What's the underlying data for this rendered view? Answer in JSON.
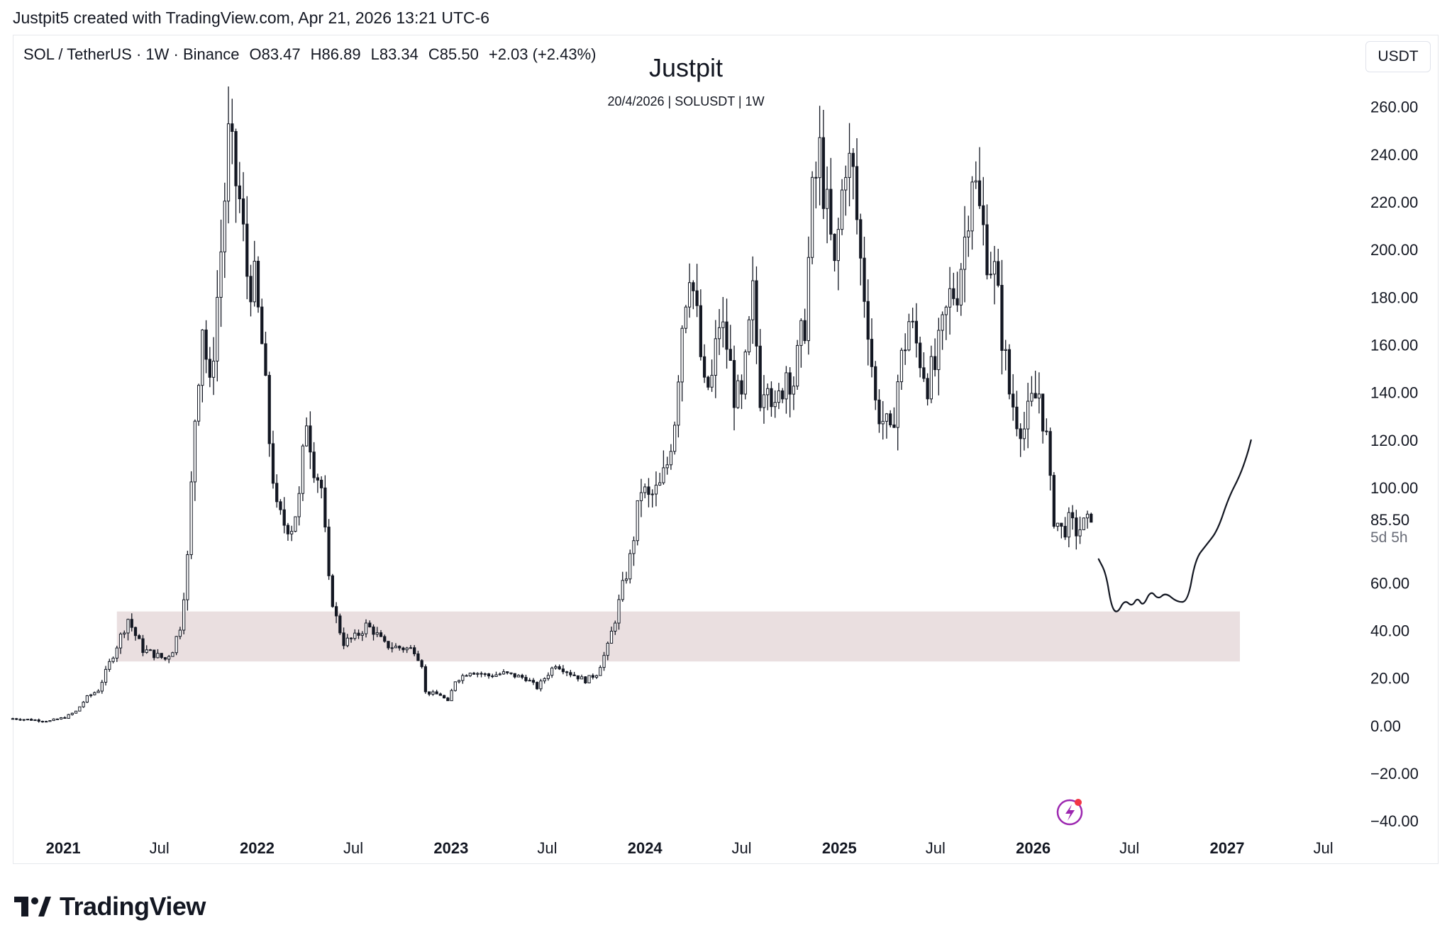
{
  "header": {
    "credit": "Justpit5 created with TradingView.com, Apr 21, 2026 13:21 UTC-6"
  },
  "legend": {
    "symbol": "SOL / TetherUS · 1W · Binance",
    "open": "O83.47",
    "high": "H86.89",
    "low": "L83.34",
    "close": "C85.50",
    "change": "+2.03 (+2.43%)"
  },
  "author": "Justpit",
  "subtitle": "20/4/2026 | SOLUSDT | 1W",
  "currency_button": "USDT",
  "footer": {
    "brand": "TradingView"
  },
  "colors": {
    "candles": "#131722",
    "zone_fill": "#eadfe0",
    "accent": "#9c27b0",
    "alert_dot": "#f23645"
  },
  "chart_data": {
    "type": "candlestick",
    "title": "Justpit",
    "subtitle": "20/4/2026 | SOLUSDT | 1W",
    "symbol": "SOL / TetherUS",
    "interval": "1W",
    "exchange": "Binance",
    "last_price": "85.50",
    "countdown": "5d 5h",
    "ylim": [
      -45,
      290
    ],
    "y_ticks": [
      260,
      240,
      220,
      200,
      180,
      160,
      140,
      120,
      100,
      60,
      40,
      20,
      0,
      -20,
      -40
    ],
    "y_tick_labels": [
      "260.00",
      "240.00",
      "220.00",
      "200.00",
      "180.00",
      "160.00",
      "140.00",
      "120.00",
      "100.00",
      "60.00",
      "40.00",
      "20.00",
      "0.00",
      "−20.00",
      "−40.00"
    ],
    "x_range": [
      "2020-09-28",
      "2027-09-01"
    ],
    "x_ticks": [
      {
        "date": "2021-01-01",
        "label": "2021",
        "bold": true
      },
      {
        "date": "2021-07-01",
        "label": "Jul",
        "bold": false
      },
      {
        "date": "2022-01-01",
        "label": "2022",
        "bold": true
      },
      {
        "date": "2022-07-01",
        "label": "Jul",
        "bold": false
      },
      {
        "date": "2023-01-01",
        "label": "2023",
        "bold": true
      },
      {
        "date": "2023-07-01",
        "label": "Jul",
        "bold": false
      },
      {
        "date": "2024-01-01",
        "label": "2024",
        "bold": true
      },
      {
        "date": "2024-07-01",
        "label": "Jul",
        "bold": false
      },
      {
        "date": "2025-01-01",
        "label": "2025",
        "bold": true
      },
      {
        "date": "2025-07-01",
        "label": "Jul",
        "bold": false
      },
      {
        "date": "2026-01-01",
        "label": "2026",
        "bold": true
      },
      {
        "date": "2026-07-01",
        "label": "Jul",
        "bold": false
      },
      {
        "date": "2027-01-01",
        "label": "2027",
        "bold": true
      },
      {
        "date": "2027-07-01",
        "label": "Jul",
        "bold": false
      }
    ],
    "price_path": [
      [
        "2020-09-28",
        3.0
      ],
      [
        "2020-12-07",
        2.0
      ],
      [
        "2021-01-04",
        3.5
      ],
      [
        "2021-01-25",
        6
      ],
      [
        "2021-02-15",
        12
      ],
      [
        "2021-03-08",
        15
      ],
      [
        "2021-04-05",
        30
      ],
      [
        "2021-05-03",
        45
      ],
      [
        "2021-05-17",
        38
      ],
      [
        "2021-05-31",
        32
      ],
      [
        "2021-06-21",
        30
      ],
      [
        "2021-07-12",
        28
      ],
      [
        "2021-07-26",
        32
      ],
      [
        "2021-08-09",
        42
      ],
      [
        "2021-08-23",
        70
      ],
      [
        "2021-09-06",
        130
      ],
      [
        "2021-09-20",
        170
      ],
      [
        "2021-10-04",
        140
      ],
      [
        "2021-10-25",
        200
      ],
      [
        "2021-11-08",
        245
      ],
      [
        "2021-11-29",
        220
      ],
      [
        "2021-12-13",
        190
      ],
      [
        "2021-12-27",
        185
      ],
      [
        "2022-01-10",
        160
      ],
      [
        "2022-01-24",
        120
      ],
      [
        "2022-02-07",
        90
      ],
      [
        "2022-02-21",
        85
      ],
      [
        "2022-03-07",
        84
      ],
      [
        "2022-03-21",
        95
      ],
      [
        "2022-04-04",
        130
      ],
      [
        "2022-04-18",
        110
      ],
      [
        "2022-05-02",
        100
      ],
      [
        "2022-05-16",
        60
      ],
      [
        "2022-05-30",
        45
      ],
      [
        "2022-06-13",
        35
      ],
      [
        "2022-07-04",
        37
      ],
      [
        "2022-07-25",
        42
      ],
      [
        "2022-08-08",
        40
      ],
      [
        "2022-08-29",
        34
      ],
      [
        "2022-09-19",
        33
      ],
      [
        "2022-10-24",
        32
      ],
      [
        "2022-11-07",
        26
      ],
      [
        "2022-11-14",
        14
      ],
      [
        "2022-12-12",
        13
      ],
      [
        "2022-12-26",
        10
      ],
      [
        "2023-01-09",
        19
      ],
      [
        "2023-02-06",
        23
      ],
      [
        "2023-03-13",
        21
      ],
      [
        "2023-04-10",
        22
      ],
      [
        "2023-05-22",
        20
      ],
      [
        "2023-06-12",
        16
      ],
      [
        "2023-07-17",
        26
      ],
      [
        "2023-08-14",
        22
      ],
      [
        "2023-09-11",
        19
      ],
      [
        "2023-10-02",
        22
      ],
      [
        "2023-10-23",
        33
      ],
      [
        "2023-11-06",
        45
      ],
      [
        "2023-11-20",
        58
      ],
      [
        "2023-12-04",
        70
      ],
      [
        "2023-12-25",
        100
      ],
      [
        "2024-01-08",
        95
      ],
      [
        "2024-01-29",
        100
      ],
      [
        "2024-02-12",
        110
      ],
      [
        "2024-02-26",
        130
      ],
      [
        "2024-03-11",
        170
      ],
      [
        "2024-03-25",
        195
      ],
      [
        "2024-04-08",
        170
      ],
      [
        "2024-04-22",
        140
      ],
      [
        "2024-05-06",
        145
      ],
      [
        "2024-05-20",
        170
      ],
      [
        "2024-06-03",
        160
      ],
      [
        "2024-06-17",
        140
      ],
      [
        "2024-07-01",
        135
      ],
      [
        "2024-07-22",
        180
      ],
      [
        "2024-08-05",
        140
      ],
      [
        "2024-08-19",
        150
      ],
      [
        "2024-09-02",
        130
      ],
      [
        "2024-09-23",
        150
      ],
      [
        "2024-10-07",
        145
      ],
      [
        "2024-10-28",
        170
      ],
      [
        "2024-11-11",
        220
      ],
      [
        "2024-11-25",
        240
      ],
      [
        "2024-12-09",
        215
      ],
      [
        "2024-12-23",
        190
      ],
      [
        "2025-01-13",
        240
      ],
      [
        "2025-01-27",
        230
      ],
      [
        "2025-02-10",
        195
      ],
      [
        "2025-02-24",
        170
      ],
      [
        "2025-03-10",
        135
      ],
      [
        "2025-03-31",
        125
      ],
      [
        "2025-04-07",
        120
      ],
      [
        "2025-04-21",
        145
      ],
      [
        "2025-05-12",
        170
      ],
      [
        "2025-05-26",
        160
      ],
      [
        "2025-06-16",
        145
      ],
      [
        "2025-06-30",
        150
      ],
      [
        "2025-07-14",
        165
      ],
      [
        "2025-07-28",
        180
      ],
      [
        "2025-08-11",
        185
      ],
      [
        "2025-08-25",
        205
      ],
      [
        "2025-09-08",
        235
      ],
      [
        "2025-09-22",
        215
      ],
      [
        "2025-10-06",
        200
      ],
      [
        "2025-10-20",
        190
      ],
      [
        "2025-11-03",
        165
      ],
      [
        "2025-11-17",
        140
      ],
      [
        "2025-12-01",
        130
      ],
      [
        "2025-12-15",
        125
      ],
      [
        "2025-12-29",
        135
      ],
      [
        "2026-01-12",
        140
      ],
      [
        "2026-01-26",
        120
      ],
      [
        "2026-02-02",
        100
      ],
      [
        "2026-02-09",
        88
      ],
      [
        "2026-02-23",
        82
      ],
      [
        "2026-03-09",
        85
      ],
      [
        "2026-03-23",
        82
      ],
      [
        "2026-04-06",
        84
      ],
      [
        "2026-04-20",
        85.5
      ]
    ],
    "support_zone": {
      "from": "2021-04-12",
      "to": "2027-01-25",
      "low": 27,
      "high": 48
    },
    "projection_path": [
      [
        "2026-05-04",
        70
      ],
      [
        "2026-05-18",
        64
      ],
      [
        "2026-05-28",
        50
      ],
      [
        "2026-06-08",
        47
      ],
      [
        "2026-06-22",
        53
      ],
      [
        "2026-07-06",
        50
      ],
      [
        "2026-07-16",
        54
      ],
      [
        "2026-07-27",
        50
      ],
      [
        "2026-08-10",
        57
      ],
      [
        "2026-08-24",
        53
      ],
      [
        "2026-09-07",
        56
      ],
      [
        "2026-09-28",
        52
      ],
      [
        "2026-10-19",
        52
      ],
      [
        "2026-11-02",
        70
      ],
      [
        "2026-11-23",
        76
      ],
      [
        "2026-12-14",
        82
      ],
      [
        "2027-01-04",
        96
      ],
      [
        "2027-01-25",
        105
      ],
      [
        "2027-02-08",
        114
      ],
      [
        "2027-02-15",
        120
      ]
    ]
  }
}
